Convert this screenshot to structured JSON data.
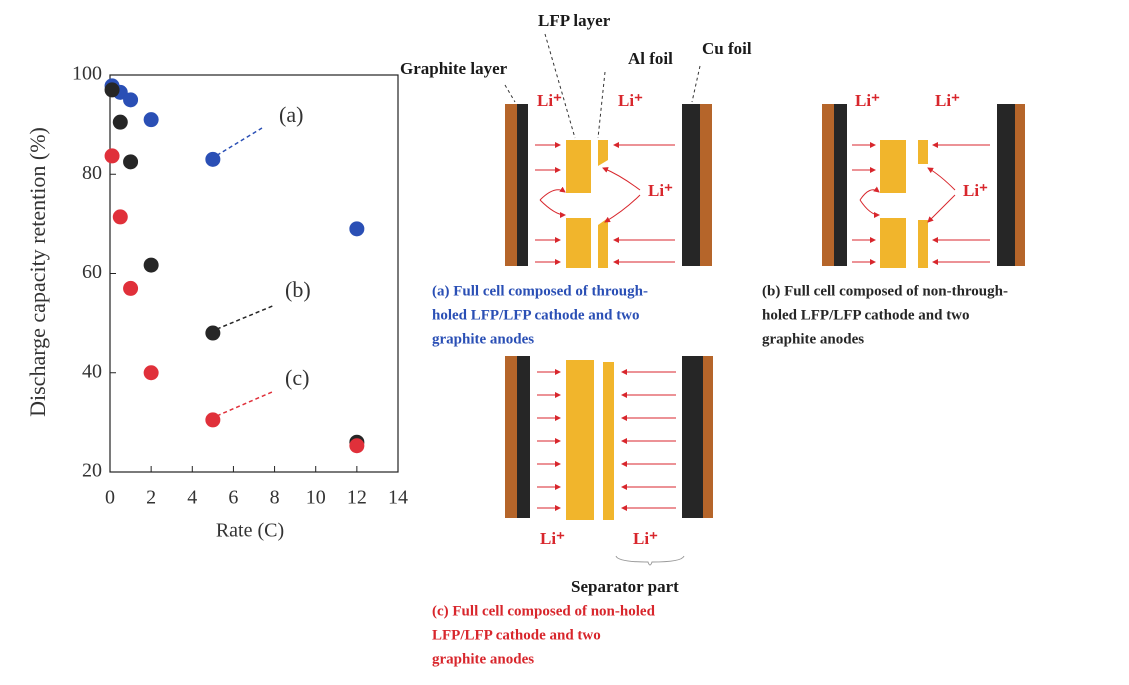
{
  "chart_data": {
    "type": "scatter",
    "xlabel": "Rate (C)",
    "ylabel": "Discharge capacity retention (%)",
    "x": [
      0.1,
      0.5,
      1,
      2,
      5,
      12
    ],
    "series": [
      {
        "name": "(a)",
        "color": "#2a4fb5",
        "values": [
          97.8,
          96.5,
          95,
          91,
          83,
          69
        ]
      },
      {
        "name": "(b)",
        "color": "#262626",
        "values": [
          97,
          90.5,
          82.5,
          61.7,
          48,
          26
        ]
      },
      {
        "name": "(c)",
        "color": "#e0303a",
        "values": [
          83.7,
          71.4,
          57,
          40,
          30.5,
          25.3
        ]
      }
    ],
    "xlim": [
      0,
      14
    ],
    "xticks": [
      0,
      2,
      4,
      6,
      8,
      10,
      12,
      14
    ],
    "ylim": [
      20,
      100
    ],
    "yticks": [
      20,
      40,
      60,
      80,
      100
    ]
  },
  "diagram": {
    "labels": [
      "Graphite layer",
      "LFP layer",
      "Al foil",
      "Cu foil",
      "Separator part"
    ],
    "ion_labels": [
      "Li⁺",
      "Li⁺",
      "Li⁺",
      "Li⁺",
      "Li⁺",
      "Li⁺",
      "Li⁺",
      "Li⁺"
    ],
    "captions": [
      {
        "color": "#2a4fb5",
        "lines": [
          "(a) Full cell composed of through-",
          "holed LFP/LFP cathode and two",
          "graphite anodes"
        ]
      },
      {
        "color": "#262626",
        "lines": [
          "(b) Full cell composed of non-through-",
          "holed LFP/LFP cathode and two",
          "graphite anodes"
        ]
      },
      {
        "color": "#d8262c",
        "lines": [
          "(c) Full cell composed of non-holed",
          "LFP/LFP cathode and two",
          "graphite anodes"
        ]
      }
    ]
  }
}
